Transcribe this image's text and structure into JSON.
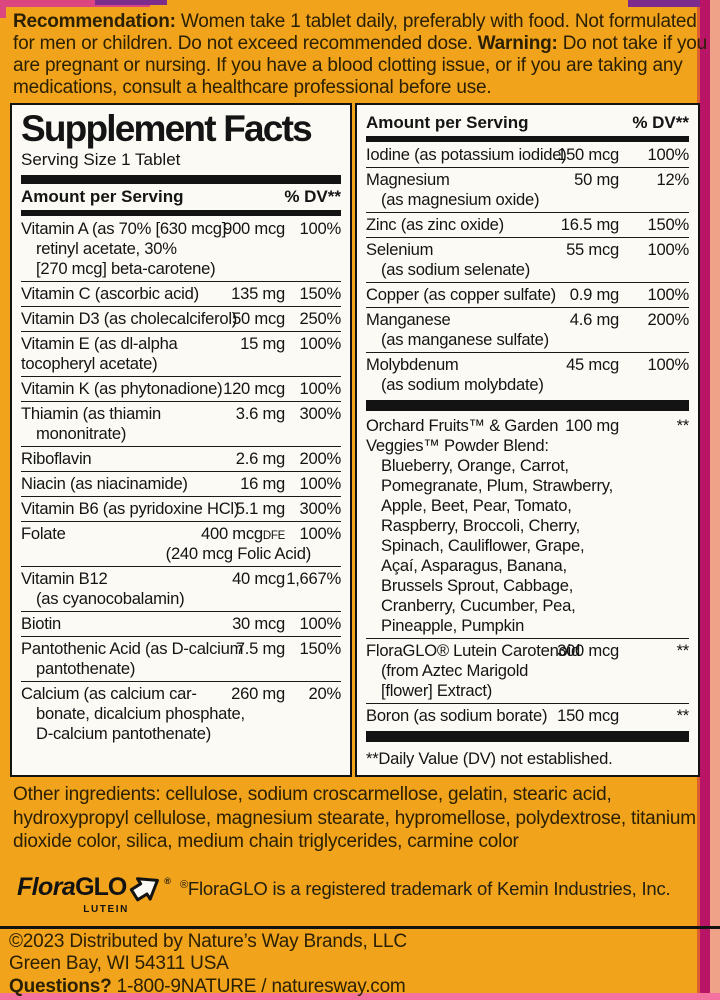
{
  "colors": {
    "package_orange": "#F1A31C",
    "panel_background": "#FBFAF4",
    "panel_text": "#141414",
    "label_text_dark": "#2B2002",
    "edge_magenta": "#B81566",
    "edge_peach": "#EFA287",
    "edge_orange_line": "#DD5F31",
    "edge_purple": "#7E2C8C",
    "edge_pink": "#DB4580",
    "bottom_strip_pink": "#F3729F"
  },
  "recommendation": {
    "segments": [
      {
        "bold": "Recommendation:",
        "text": " Women take 1 tablet daily, preferably with food.  Not formulated for men or children. Do not exceed recommended dose. "
      },
      {
        "bold": "Warning:",
        "text": " Do not take if you are pregnant or nursing. If you have a blood clotting issue, or if you are taking any medications, consult a healthcare professional before use."
      }
    ]
  },
  "panel_left": {
    "title": "Supplement Facts",
    "serving_size": "Serving Size 1 Tablet",
    "header": {
      "amount": "Amount per Serving",
      "dv": "% DV**"
    },
    "rows": [
      {
        "name": "Vitamin A (as 70% [630 mcg]",
        "cont": [
          {
            "t": "retinyl acetate, 30%",
            "i": 1
          },
          {
            "t": "[270 mcg] beta-carotene)",
            "i": 1
          }
        ],
        "amount": "900 mcg",
        "dv": "100%"
      },
      {
        "name": "Vitamin C (ascorbic acid)",
        "amount": "135 mg",
        "dv": "150%"
      },
      {
        "name": "Vitamin D3 (as cholecalciferol)",
        "amount": "50 mcg",
        "dv": "250%"
      },
      {
        "name": "Vitamin E (as dl-alpha",
        "cont": [
          {
            "t": "tocopheryl acetate)",
            "i": 0
          }
        ],
        "amount": "15 mg",
        "dv": "100%"
      },
      {
        "name": "Vitamin K (as phytonadione)",
        "amount": "120 mcg",
        "dv": "100%"
      },
      {
        "name": "Thiamin (as thiamin",
        "cont": [
          {
            "t": "mononitrate)",
            "i": 1
          }
        ],
        "amount": "3.6 mg",
        "dv": "300%"
      },
      {
        "name": "Riboflavin",
        "amount": "2.6 mg",
        "dv": "200%"
      },
      {
        "name": "Niacin (as niacinamide)",
        "amount": "16 mg",
        "dv": "100%"
      },
      {
        "name": "Vitamin B6 (as pyridoxine HCl)",
        "amount": "5.1 mg",
        "dv": "300%"
      },
      {
        "name": "Folate",
        "amount": "400 mcg",
        "amount_suffix": "DFE",
        "dv": "100%",
        "amount_note": "(240 mcg Folic Acid)"
      },
      {
        "name": "Vitamin B12",
        "cont": [
          {
            "t": "(as cyanocobalamin)",
            "i": 1
          }
        ],
        "amount": "40 mcg",
        "dv": "1,667%"
      },
      {
        "name": "Biotin",
        "amount": "30 mcg",
        "dv": "100%"
      },
      {
        "name": "Pantothenic Acid (as D-calcium",
        "cont": [
          {
            "t": "pantothenate)",
            "i": 1
          }
        ],
        "amount": "7.5 mg",
        "dv": "150%"
      },
      {
        "name": "Calcium (as calcium car-",
        "cont": [
          {
            "t": "bonate, dicalcium phosphate,",
            "i": 1
          },
          {
            "t": "D-calcium pantothenate)",
            "i": 1
          }
        ],
        "amount": "260 mg",
        "dv": "20%"
      }
    ]
  },
  "panel_right": {
    "header": {
      "amount": "Amount per Serving",
      "dv": "% DV**"
    },
    "rows": [
      {
        "name": "Iodine (as potassium iodide)",
        "amount": "150 mcg",
        "dv": "100%"
      },
      {
        "name": "Magnesium",
        "cont": [
          {
            "t": "(as magnesium oxide)",
            "i": 1
          }
        ],
        "amount": "50 mg",
        "dv": "12%"
      },
      {
        "name": "Zinc (as zinc oxide)",
        "amount": "16.5 mg",
        "dv": "150%"
      },
      {
        "name": "Selenium",
        "cont": [
          {
            "t": "(as sodium selenate)",
            "i": 1
          }
        ],
        "amount": "55 mcg",
        "dv": "100%"
      },
      {
        "name": "Copper (as copper sulfate)",
        "amount": "0.9 mg",
        "dv": "100%"
      },
      {
        "name": "Manganese",
        "cont": [
          {
            "t": "(as manganese sulfate)",
            "i": 1
          }
        ],
        "amount": "4.6 mg",
        "dv": "200%"
      },
      {
        "name": "Molybdenum",
        "cont": [
          {
            "t": "(as sodium molybdate)",
            "i": 1
          }
        ],
        "amount": "45 mcg",
        "dv": "100%"
      },
      {
        "divider": true
      },
      {
        "name": "Orchard Fruits™ & Garden",
        "cont": [
          {
            "t": "Veggies™ Powder Blend:",
            "i": 0
          },
          {
            "t": "Blueberry, Orange, Carrot,",
            "i": 1
          },
          {
            "t": "Pomegranate, Plum, Strawberry,",
            "i": 1
          },
          {
            "t": "Apple, Beet, Pear, Tomato,",
            "i": 1
          },
          {
            "t": "Raspberry, Broccoli, Cherry,",
            "i": 1
          },
          {
            "t": "Spinach, Cauliflower, Grape,",
            "i": 1
          },
          {
            "t": "Açaí, Asparagus, Banana,",
            "i": 1
          },
          {
            "t": "Brussels Sprout, Cabbage,",
            "i": 1
          },
          {
            "t": "Cranberry, Cucumber, Pea,",
            "i": 1
          },
          {
            "t": "Pineapple, Pumpkin",
            "i": 1
          }
        ],
        "amount": "100 mg",
        "dv": "**"
      },
      {
        "name": "FloraGLO® Lutein Carotenoid",
        "cont": [
          {
            "t": "(from Aztec Marigold",
            "i": 1
          },
          {
            "t": "[flower] Extract)",
            "i": 1
          }
        ],
        "amount": "300 mcg",
        "dv": "**"
      },
      {
        "name": "Boron (as sodium borate)",
        "amount": "150 mcg",
        "dv": "**"
      },
      {
        "divider": true
      }
    ],
    "footnote": "**Daily Value (DV) not established."
  },
  "other_ingredients": {
    "text": "Other ingredients: cellulose, sodium croscarmellose, gelatin, stearic acid, hydroxypropyl cellulose, magnesium stearate, hypromellose, polydextrose, titanium dioxide color, silica, medium chain triglycerides, carmine color"
  },
  "floraglo": {
    "flora": "Flora",
    "glo": "GLO",
    "lutein": "LUTEIN",
    "reg": "®",
    "trademark_reg": "®",
    "trademark_text": "FloraGLO is a registered trademark of Kemin Industries, Inc."
  },
  "footer": {
    "copyright": "©2023 Distributed by Nature’s Way Brands, LLC",
    "address": "Green Bay, WI 54311 USA",
    "questions_label": "Questions?",
    "contact": "1-800-9NATURE / naturesway.com"
  }
}
